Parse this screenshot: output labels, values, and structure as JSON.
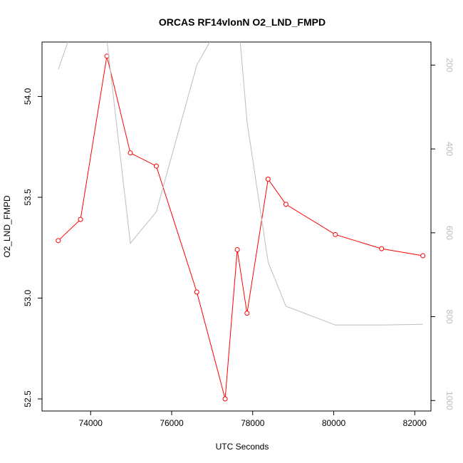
{
  "chart_data": {
    "type": "line",
    "title": "ORCAS RF14vlonN O2_LND_FMPD",
    "xlabel": "UTC Seconds",
    "ylabel": "O2_LND_FMPD",
    "xlim": [
      72800,
      82400
    ],
    "ylim": [
      52.44,
      54.27
    ],
    "y2lim": [
      1025,
      145
    ],
    "x_ticks": [
      74000,
      76000,
      78000,
      80000,
      82000
    ],
    "y_ticks": [
      52.5,
      53.0,
      53.5,
      54.0
    ],
    "y2_ticks": [
      200,
      400,
      600,
      800,
      1000
    ],
    "grid": false,
    "series": [
      {
        "axis": "left",
        "color": "#ff0000",
        "marker": "circle",
        "x": [
          73200,
          73750,
          74400,
          74980,
          75620,
          76620,
          77320,
          77620,
          77860,
          78380,
          78820,
          80040,
          81180,
          82200
        ],
        "y": [
          53.285,
          53.39,
          54.2,
          53.72,
          53.655,
          53.03,
          52.5,
          53.24,
          52.925,
          53.59,
          53.465,
          53.315,
          53.245,
          53.21
        ]
      },
      {
        "axis": "right",
        "color": "#bebebe",
        "marker": "none",
        "x": [
          73200,
          73750,
          74400,
          74980,
          75620,
          76620,
          77320,
          77620,
          77860,
          78380,
          78820,
          80040,
          81180,
          82200
        ],
        "y": [
          210,
          60,
          140,
          625,
          550,
          200,
          80,
          60,
          335,
          670,
          775,
          820,
          820,
          818
        ]
      }
    ]
  }
}
